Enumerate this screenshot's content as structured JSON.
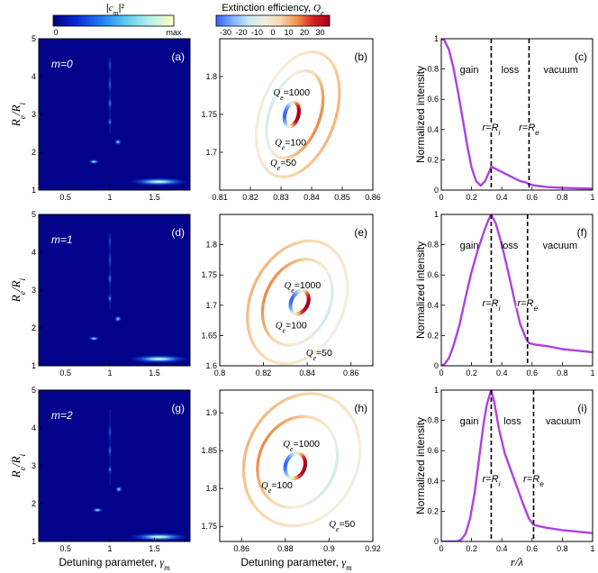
{
  "colorbars": {
    "left": {
      "title": "|c_m|²",
      "min_label": "0",
      "max_label": "max",
      "colormap": [
        "#000080",
        "#0a2bd8",
        "#1f7ef2",
        "#5fcaf2",
        "#b6f0ea",
        "#ffffc0"
      ]
    },
    "middle": {
      "title": "Extinction efficiency, Q_e",
      "ticks": [
        -30,
        -20,
        -10,
        0,
        10,
        20,
        30
      ],
      "range": [
        -36,
        36
      ],
      "colormap": [
        "#3060ff",
        "#7fb0ff",
        "#c8e8f0",
        "#f3efe0",
        "#f8d8a8",
        "#f09050",
        "#d82020",
        "#a00020"
      ]
    }
  },
  "axis_titles": {
    "col1_y": "R_e/R_i",
    "col1_x": "Detuning parameter, γ_m",
    "col2_x": "Detuning parameter, γ_m",
    "col3_y": "Normalized intensity",
    "col3_x": "r/λ"
  },
  "chart_data": [
    {
      "id": "a",
      "panel_label": "(a)",
      "type": "heatmap",
      "mode_label": "m=0",
      "xlim": [
        0.2,
        1.9
      ],
      "ylim": [
        1,
        5
      ],
      "xticks": [
        "0.5",
        "1",
        "1.5"
      ],
      "xtick_values": [
        0.5,
        1,
        1.5
      ],
      "yticks": [
        "1",
        "2",
        "3",
        "4",
        "5"
      ],
      "ytick_values": [
        1,
        2,
        3,
        4,
        5
      ],
      "hotspots": [
        {
          "x": 1.55,
          "y": 1.22,
          "sx": 0.16,
          "sy": 0.05,
          "value": 1.0
        },
        {
          "x": 0.82,
          "y": 1.75,
          "sx": 0.03,
          "sy": 0.03,
          "value": 0.85
        },
        {
          "x": 1.09,
          "y": 2.27,
          "sx": 0.02,
          "sy": 0.04,
          "value": 0.8
        },
        {
          "x": 1.0,
          "y": 2.8,
          "sx": 0.008,
          "sy": 0.05,
          "value": 0.6
        },
        {
          "x": 1.0,
          "y": 3.3,
          "sx": 0.006,
          "sy": 0.08,
          "value": 0.5
        },
        {
          "x": 1.0,
          "y": 3.8,
          "sx": 0.005,
          "sy": 0.1,
          "value": 0.35
        },
        {
          "x": 1.0,
          "y": 4.3,
          "sx": 0.004,
          "sy": 0.1,
          "value": 0.3
        }
      ]
    },
    {
      "id": "d",
      "panel_label": "(d)",
      "type": "heatmap",
      "mode_label": "m=1",
      "xlim": [
        0.2,
        1.9
      ],
      "ylim": [
        1,
        5
      ],
      "xticks": [
        "0.5",
        "1",
        "1.5"
      ],
      "xtick_values": [
        0.5,
        1,
        1.5
      ],
      "yticks": [
        "1",
        "2",
        "3",
        "4",
        "5"
      ],
      "ytick_values": [
        1,
        2,
        3,
        4,
        5
      ],
      "hotspots": [
        {
          "x": 1.55,
          "y": 1.18,
          "sx": 0.16,
          "sy": 0.05,
          "value": 1.0
        },
        {
          "x": 0.82,
          "y": 1.72,
          "sx": 0.03,
          "sy": 0.03,
          "value": 0.85
        },
        {
          "x": 1.09,
          "y": 2.24,
          "sx": 0.02,
          "sy": 0.04,
          "value": 0.8
        },
        {
          "x": 1.0,
          "y": 2.78,
          "sx": 0.008,
          "sy": 0.05,
          "value": 0.6
        },
        {
          "x": 1.0,
          "y": 3.3,
          "sx": 0.006,
          "sy": 0.08,
          "value": 0.45
        },
        {
          "x": 1.0,
          "y": 3.8,
          "sx": 0.005,
          "sy": 0.1,
          "value": 0.3
        },
        {
          "x": 1.0,
          "y": 4.3,
          "sx": 0.004,
          "sy": 0.1,
          "value": 0.25
        }
      ]
    },
    {
      "id": "g",
      "panel_label": "(g)",
      "type": "heatmap",
      "mode_label": "m=2",
      "xlim": [
        0.2,
        1.9
      ],
      "ylim": [
        1,
        5
      ],
      "xticks": [
        "0.5",
        "1",
        "1.5"
      ],
      "xtick_values": [
        0.5,
        1,
        1.5
      ],
      "yticks": [
        "1",
        "2",
        "3",
        "4",
        "5"
      ],
      "ytick_values": [
        1,
        2,
        3,
        4,
        5
      ],
      "hotspots": [
        {
          "x": 1.55,
          "y": 1.12,
          "sx": 0.16,
          "sy": 0.05,
          "value": 1.0
        },
        {
          "x": 0.86,
          "y": 1.83,
          "sx": 0.03,
          "sy": 0.03,
          "value": 0.85
        },
        {
          "x": 1.1,
          "y": 2.38,
          "sx": 0.02,
          "sy": 0.04,
          "value": 0.8
        },
        {
          "x": 1.0,
          "y": 2.9,
          "sx": 0.008,
          "sy": 0.05,
          "value": 0.55
        },
        {
          "x": 1.0,
          "y": 3.4,
          "sx": 0.006,
          "sy": 0.08,
          "value": 0.4
        },
        {
          "x": 1.0,
          "y": 3.9,
          "sx": 0.005,
          "sy": 0.1,
          "value": 0.3
        }
      ]
    },
    {
      "id": "b",
      "panel_label": "(b)",
      "type": "contour",
      "xlim": [
        0.81,
        0.86
      ],
      "ylim": [
        1.65,
        1.85
      ],
      "xticks": [
        "0.81",
        "0.82",
        "0.83",
        "0.84",
        "0.85",
        "0.86"
      ],
      "xtick_values": [
        0.81,
        0.82,
        0.83,
        0.84,
        0.85,
        0.86
      ],
      "yticks": [
        "1.7",
        "1.75",
        "1.8"
      ],
      "ytick_values": [
        1.7,
        1.75,
        1.8
      ],
      "contours": [
        {
          "label": "Q_e=1000",
          "cx": 0.8335,
          "cy": 1.75,
          "rx": 0.0022,
          "ry": 0.016,
          "tilt": 15,
          "phase": 0,
          "q_range": [
            -35,
            36
          ],
          "label_x": 0.8275,
          "label_y": 1.775
        },
        {
          "label": "Q_e=100",
          "cx": 0.8345,
          "cy": 1.75,
          "rx": 0.0082,
          "ry": 0.06,
          "tilt": 20,
          "phase": 0,
          "q_range": [
            -12,
            16
          ],
          "label_x": 0.828,
          "label_y": 1.709
        },
        {
          "label": "Q_e=50",
          "cx": 0.8355,
          "cy": 1.75,
          "rx": 0.0122,
          "ry": 0.086,
          "tilt": 20,
          "phase": 0,
          "q_range": [
            -6,
            10
          ],
          "label_x": 0.8265,
          "label_y": 1.682
        }
      ]
    },
    {
      "id": "e",
      "panel_label": "(e)",
      "type": "contour",
      "xlim": [
        0.8,
        0.87
      ],
      "ylim": [
        1.6,
        1.85
      ],
      "xticks": [
        "0.8",
        "0.82",
        "0.84",
        "0.86"
      ],
      "xtick_values": [
        0.8,
        0.82,
        0.84,
        0.86
      ],
      "yticks": [
        "1.6",
        "1.65",
        "1.7",
        "1.75",
        "1.8"
      ],
      "ytick_values": [
        1.6,
        1.65,
        1.7,
        1.75,
        1.8
      ],
      "contours": [
        {
          "label": "Q_e=1000",
          "cx": 0.8365,
          "cy": 1.705,
          "rx": 0.0038,
          "ry": 0.02,
          "tilt": 25,
          "phase": 0,
          "q_range": [
            -35,
            36
          ],
          "label_x": 0.8295,
          "label_y": 1.728
        },
        {
          "label": "Q_e=100",
          "cx": 0.8355,
          "cy": 1.705,
          "rx": 0.0148,
          "ry": 0.074,
          "tilt": 25,
          "phase": 180,
          "q_range": [
            -12,
            16
          ],
          "label_x": 0.8255,
          "label_y": 1.662
        },
        {
          "label": "Q_e=50",
          "cx": 0.8355,
          "cy": 1.705,
          "rx": 0.0212,
          "ry": 0.106,
          "tilt": 25,
          "phase": 180,
          "q_range": [
            -6,
            10
          ],
          "label_x": 0.8395,
          "label_y": 1.616
        }
      ]
    },
    {
      "id": "h",
      "panel_label": "(h)",
      "type": "contour",
      "xlim": [
        0.85,
        0.92
      ],
      "ylim": [
        1.73,
        1.93
      ],
      "xticks": [
        "0.86",
        "0.88",
        "0.9",
        "0.92"
      ],
      "xtick_values": [
        0.86,
        0.88,
        0.9,
        0.92
      ],
      "yticks": [
        "1.75",
        "1.8",
        "1.85",
        "1.9"
      ],
      "ytick_values": [
        1.75,
        1.8,
        1.85,
        1.9
      ],
      "contours": [
        {
          "label": "Q_e=1000",
          "cx": 0.8845,
          "cy": 1.83,
          "rx": 0.0044,
          "ry": 0.017,
          "tilt": 20,
          "phase": 0,
          "q_range": [
            -35,
            36
          ],
          "label_x": 0.879,
          "label_y": 1.855
        },
        {
          "label": "Q_e=100",
          "cx": 0.8855,
          "cy": 1.835,
          "rx": 0.0175,
          "ry": 0.062,
          "tilt": 25,
          "phase": 180,
          "q_range": [
            -12,
            16
          ],
          "label_x": 0.869,
          "label_y": 1.8
        },
        {
          "label": "Q_e=50",
          "cx": 0.8875,
          "cy": 1.838,
          "rx": 0.0255,
          "ry": 0.09,
          "tilt": 25,
          "phase": 180,
          "q_range": [
            -6,
            10
          ],
          "label_x": 0.9,
          "label_y": 1.749
        }
      ]
    },
    {
      "id": "c",
      "panel_label": "(c)",
      "type": "line",
      "xlim": [
        0,
        1
      ],
      "ylim": [
        0,
        1
      ],
      "xticks": [
        "0",
        "0.2",
        "0.4",
        "0.6",
        "0.8",
        "1"
      ],
      "xtick_values": [
        0,
        0.2,
        0.4,
        0.6,
        0.8,
        1
      ],
      "yticks": [
        "0",
        "0.2",
        "0.4",
        "0.6",
        "0.8",
        "1"
      ],
      "ytick_values": [
        0,
        0.2,
        0.4,
        0.6,
        0.8,
        1
      ],
      "x": [
        0,
        0.02,
        0.05,
        0.08,
        0.11,
        0.14,
        0.17,
        0.2,
        0.23,
        0.26,
        0.29,
        0.32,
        0.33,
        0.36,
        0.4,
        0.44,
        0.48,
        0.52,
        0.56,
        0.58,
        0.62,
        0.7,
        0.8,
        0.9,
        1
      ],
      "y": [
        1.0,
        0.99,
        0.93,
        0.81,
        0.65,
        0.48,
        0.3,
        0.15,
        0.06,
        0.03,
        0.06,
        0.13,
        0.155,
        0.14,
        0.12,
        0.1,
        0.08,
        0.06,
        0.05,
        0.04,
        0.03,
        0.02,
        0.015,
        0.012,
        0.01
      ],
      "boundaries": [
        0.33,
        0.58
      ],
      "region_labels": [
        "gain",
        "loss",
        "vacuum"
      ],
      "boundary_labels": [
        "r=R_i",
        "r=R_e"
      ]
    },
    {
      "id": "f",
      "panel_label": "(f)",
      "type": "line",
      "xlim": [
        0,
        1
      ],
      "ylim": [
        0,
        1
      ],
      "xticks": [
        "0",
        "0.2",
        "0.4",
        "0.6",
        "0.8",
        "1"
      ],
      "xtick_values": [
        0,
        0.2,
        0.4,
        0.6,
        0.8,
        1
      ],
      "yticks": [
        "0",
        "0.2",
        "0.4",
        "0.6",
        "0.8",
        "1"
      ],
      "ytick_values": [
        0,
        0.2,
        0.4,
        0.6,
        0.8,
        1
      ],
      "x": [
        0,
        0.02,
        0.05,
        0.08,
        0.12,
        0.16,
        0.2,
        0.24,
        0.28,
        0.31,
        0.33,
        0.36,
        0.4,
        0.44,
        0.48,
        0.52,
        0.56,
        0.58,
        0.62,
        0.7,
        0.8,
        0.9,
        1
      ],
      "y": [
        0,
        0.01,
        0.05,
        0.13,
        0.27,
        0.45,
        0.62,
        0.76,
        0.88,
        0.96,
        1.0,
        0.94,
        0.8,
        0.63,
        0.45,
        0.28,
        0.18,
        0.15,
        0.14,
        0.13,
        0.11,
        0.1,
        0.09
      ],
      "boundaries": [
        0.33,
        0.57
      ],
      "region_labels": [
        "gain",
        "loss",
        "vacuum"
      ],
      "boundary_labels": [
        "r=R_i",
        "r=R_e"
      ]
    },
    {
      "id": "i",
      "panel_label": "(i)",
      "type": "line",
      "xlim": [
        0,
        1
      ],
      "ylim": [
        0,
        1
      ],
      "xticks": [
        "0",
        "0.2",
        "0.4",
        "0.6",
        "0.8",
        "1"
      ],
      "xtick_values": [
        0,
        0.2,
        0.4,
        0.6,
        0.8,
        1
      ],
      "yticks": [
        "0",
        "0.2",
        "0.4",
        "0.6",
        "0.8",
        "1"
      ],
      "ytick_values": [
        0,
        0.2,
        0.4,
        0.6,
        0.8,
        1
      ],
      "x": [
        0,
        0.05,
        0.1,
        0.13,
        0.16,
        0.19,
        0.22,
        0.25,
        0.28,
        0.3,
        0.32,
        0.33,
        0.35,
        0.38,
        0.42,
        0.46,
        0.5,
        0.54,
        0.58,
        0.61,
        0.65,
        0.7,
        0.8,
        0.9,
        1
      ],
      "y": [
        0,
        0.0,
        0.0,
        0.01,
        0.05,
        0.15,
        0.32,
        0.55,
        0.78,
        0.9,
        0.97,
        1.0,
        0.92,
        0.75,
        0.58,
        0.47,
        0.36,
        0.25,
        0.15,
        0.11,
        0.1,
        0.09,
        0.075,
        0.065,
        0.055
      ],
      "boundaries": [
        0.33,
        0.61
      ],
      "region_labels": [
        "gain",
        "loss",
        "vacuum"
      ],
      "boundary_labels": [
        "r=R_i",
        "r=R_e"
      ]
    }
  ]
}
